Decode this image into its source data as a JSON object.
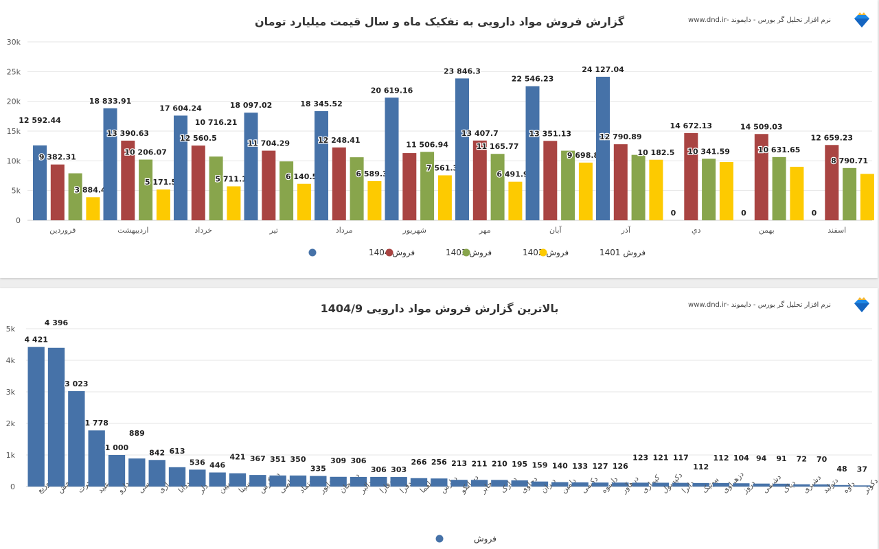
{
  "header": {
    "brand_text": "نرم افزار تحلیل گر بورس - دایموند -www.dnd.ir"
  },
  "colors": {
    "1404": "#4672a8",
    "1403": "#a94442",
    "1402": "#88a54c",
    "1401": "#fdca01",
    "single": "#4672a8"
  },
  "chart_data": [
    {
      "type": "bar",
      "title": "گزارش فروش مواد دارویی به تفکیک ماه و سال قیمت میلیارد تومان",
      "categories": [
        "فروردین",
        "اردیبهشت",
        "خرداد",
        "تیر",
        "مرداد",
        "شهریور",
        "مهر",
        "آبان",
        "آذر",
        "دي",
        "بهمن",
        "اسفند"
      ],
      "ylim": [
        0,
        30000
      ],
      "yticks": [
        "0",
        "5k",
        "10k",
        "15k",
        "20k",
        "25k",
        "30k"
      ],
      "grid": true,
      "legend": "bottom",
      "series": [
        {
          "name": "فروش 1404",
          "key": "1404",
          "values": [
            12592.44,
            18833.91,
            17604.24,
            18097.02,
            18345.52,
            20619.16,
            23846.3,
            22546.23,
            24127.04,
            0,
            0,
            0
          ],
          "labels": [
            "12 592.44",
            "18 833.91",
            "17 604.24",
            "18 097.02",
            "18 345.52",
            "20 619.16",
            "23 846.3",
            "22 546.23",
            "24 127.04",
            "0",
            "0",
            "0"
          ]
        },
        {
          "name": "فروش 1403",
          "key": "1403",
          "values": [
            9382.31,
            13390.63,
            12560.5,
            11704.29,
            12248.41,
            11300,
            13407.7,
            13351.13,
            12790.89,
            14672.13,
            14509.03,
            12659.23
          ],
          "labels": [
            "9 382.31",
            "13 390.63",
            "12 560.5",
            "11 704.29",
            "12 248.41",
            null,
            "13 407.7",
            "13 351.13",
            "12 790.89",
            "14 672.13",
            "14 509.03",
            "12 659.23"
          ]
        },
        {
          "name": "فروش 1402",
          "key": "1402",
          "values": [
            7900,
            10206.07,
            10716.21,
            9900,
            10600,
            11506.94,
            11165.77,
            11700,
            11000,
            10341.59,
            10631.65,
            8790.71
          ],
          "labels": [
            null,
            "10 206.07",
            "10 716.21",
            null,
            null,
            "11 506.94",
            "11 165.77",
            null,
            null,
            "10 341.59",
            "10 631.65",
            "8 790.71"
          ]
        },
        {
          "name": "فروش 1401",
          "key": "1401",
          "values": [
            3884.42,
            5171.51,
            5711.13,
            6140.56,
            6589.38,
            7561.31,
            6491.91,
            9698.85,
            10182.5,
            9800,
            9000,
            7800
          ],
          "labels": [
            "3 884.42",
            "5 171.51",
            "5 711.13",
            "6 140.56",
            "6 589.38",
            "7 561.31",
            "6 491.91",
            "9 698.85",
            "10 182.5",
            null,
            null,
            null
          ]
        }
      ]
    },
    {
      "type": "bar",
      "title": "بالاترین گزارش فروش مواد دارویی 1404/9",
      "ylim": [
        0,
        5000
      ],
      "yticks": [
        "0",
        "1k",
        "2k",
        "3k",
        "4k",
        "5k"
      ],
      "grid": true,
      "legend": "bottom",
      "series_name": "فروش",
      "categories": [
        "دتوزیع",
        "پخش",
        "هجرت",
        "دعبید",
        "دارو",
        "کی بی سی",
        "درازی",
        "ددانا",
        "دلر",
        "کاسپین",
        "دسینا",
        "دزاگرس",
        "دقاضی",
        "دتماد",
        "دابور",
        "دسبحان",
        "دالبر",
        "دفارا",
        "دفرا",
        "دلقما",
        "دپارس",
        "دسانکو",
        "دجابر",
        "درازک",
        "دحاوی",
        "دیران",
        "دامین",
        "دکیمی",
        "داسوه",
        "درهآور",
        "کیمازی",
        "دکپسول",
        "داترا",
        "بیوتیک",
        "دزهراوی",
        "دروز",
        "دشیمی",
        "دپاک",
        "دشیری",
        "دتولید",
        "داوه",
        "دکوثر"
      ],
      "values": [
        4421,
        4396,
        3023,
        1778,
        1000,
        889,
        842,
        613,
        536,
        446,
        421,
        367,
        351,
        350,
        335,
        309,
        306,
        306,
        303,
        266,
        256,
        213,
        211,
        210,
        195,
        159,
        140,
        133,
        127,
        126,
        123,
        121,
        117,
        112,
        112,
        104,
        94,
        91,
        72,
        70,
        48,
        37
      ],
      "labels": [
        "4 421",
        "4 396",
        "3 023",
        "1 778",
        "1 000",
        "889",
        "842",
        "613",
        "536",
        "446",
        "421",
        "367",
        "351",
        "350",
        "335",
        "309",
        "306",
        "306",
        "303",
        "266",
        "256",
        "213",
        "211",
        "210",
        "195",
        "159",
        "140",
        "133",
        "127",
        "126",
        "123",
        "121",
        "117",
        "112",
        "112",
        "104",
        "94",
        "91",
        "72",
        "70",
        "48",
        "37"
      ]
    }
  ]
}
